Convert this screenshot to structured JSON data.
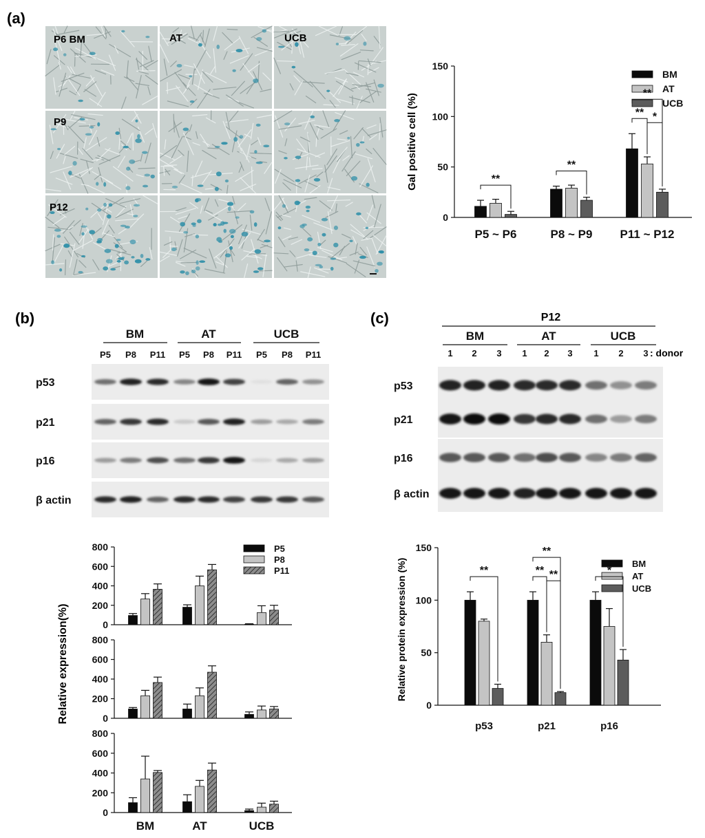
{
  "panels": {
    "a": {
      "label": "(a)"
    },
    "b": {
      "label": "(b)"
    },
    "c": {
      "label": "(c)"
    }
  },
  "micrographs": {
    "columns": [
      "P6 BM",
      "AT",
      "UCB"
    ],
    "rows": [
      "P9",
      "P12"
    ]
  },
  "colors": {
    "BM": "#0b0b0b",
    "AT": "#c4c4c4",
    "UCB": "#5c5c5c",
    "P5": "#0b0b0b",
    "P8": "#c4c4c4",
    "P11": "#8d8d8d",
    "stain": "#2f8fa8",
    "micrograph_bg": "#c9d1cf"
  },
  "western_b": {
    "groups": [
      "BM",
      "AT",
      "UCB"
    ],
    "lanes": [
      "P5",
      "P8",
      "P11",
      "P5",
      "P8",
      "P11",
      "P5",
      "P8",
      "P11"
    ],
    "rows": [
      {
        "label": "p53",
        "intensity": [
          0.55,
          0.9,
          0.85,
          0.45,
          0.95,
          0.75,
          0.05,
          0.6,
          0.4
        ]
      },
      {
        "label": "p21",
        "intensity": [
          0.6,
          0.8,
          0.85,
          0.15,
          0.65,
          0.9,
          0.35,
          0.3,
          0.5
        ]
      },
      {
        "label": "p16",
        "intensity": [
          0.35,
          0.5,
          0.7,
          0.55,
          0.8,
          0.95,
          0.1,
          0.3,
          0.35
        ]
      },
      {
        "label": "β actin",
        "intensity": [
          0.85,
          0.9,
          0.6,
          0.85,
          0.85,
          0.75,
          0.8,
          0.8,
          0.65
        ]
      }
    ]
  },
  "western_c": {
    "title": "P12",
    "groups": [
      "BM",
      "AT",
      "UCB"
    ],
    "donors": [
      "1",
      "2",
      "3",
      "1",
      "2",
      "3",
      "1",
      "2",
      "3"
    ],
    "donor_label": ": donor",
    "rows": [
      {
        "label": "p53",
        "intensity": [
          0.9,
          0.9,
          0.9,
          0.85,
          0.85,
          0.85,
          0.55,
          0.4,
          0.5
        ]
      },
      {
        "label": "p21",
        "intensity": [
          0.95,
          1.0,
          1.0,
          0.8,
          0.85,
          0.85,
          0.55,
          0.35,
          0.5
        ]
      },
      {
        "label": "p16",
        "intensity": [
          0.65,
          0.65,
          0.65,
          0.55,
          0.7,
          0.65,
          0.45,
          0.5,
          0.6
        ]
      },
      {
        "label": "β actin",
        "intensity": [
          0.95,
          0.95,
          0.95,
          0.9,
          0.95,
          0.95,
          0.95,
          0.95,
          0.95
        ]
      }
    ]
  },
  "chart_data": [
    {
      "id": "a",
      "type": "bar",
      "ylabel": "Gal positive cell (%)",
      "categories": [
        "P5 ~ P6",
        "P8 ~ P9",
        "P11 ~ P12"
      ],
      "ylim": [
        0,
        150
      ],
      "yticks": [
        0,
        50,
        100,
        150
      ],
      "legend_position": "top-right",
      "series": [
        {
          "name": "BM",
          "values": [
            11,
            28,
            68
          ],
          "errors": [
            6,
            3,
            15
          ]
        },
        {
          "name": "AT",
          "values": [
            14,
            29,
            53
          ],
          "errors": [
            4,
            3,
            7
          ]
        },
        {
          "name": "UCB",
          "values": [
            3,
            17,
            25
          ],
          "errors": [
            3,
            3,
            3
          ]
        }
      ],
      "annotations": [
        {
          "text": "**",
          "category": 0,
          "from": 0,
          "to": 2,
          "level": 0
        },
        {
          "text": "**",
          "category": 1,
          "from": 0,
          "to": 2,
          "level": 0
        },
        {
          "text": "**",
          "category": 2,
          "from": 0,
          "to": 2,
          "level": 1
        },
        {
          "text": "**",
          "category": 2,
          "from": 0,
          "to": 1,
          "level": 0
        },
        {
          "text": "*",
          "category": 2,
          "from": 1,
          "to": 2,
          "level": 0
        }
      ]
    },
    {
      "id": "b",
      "type": "bar",
      "ylabel": "Relative expression(%)",
      "categories": [
        "BM",
        "AT",
        "UCB"
      ],
      "legend_position": "top-right",
      "series_names": [
        "P5",
        "P8",
        "P11"
      ],
      "subplots": [
        {
          "ylim": [
            0,
            800
          ],
          "yticks": [
            0,
            200,
            400,
            600,
            800
          ],
          "series": [
            {
              "name": "P5",
              "values": [
                95,
                180,
                5
              ],
              "errors": [
                20,
                25,
                5
              ]
            },
            {
              "name": "P8",
              "values": [
                265,
                400,
                125
              ],
              "errors": [
                55,
                100,
                70
              ]
            },
            {
              "name": "P11",
              "values": [
                365,
                565,
                150
              ],
              "errors": [
                55,
                55,
                50
              ]
            }
          ]
        },
        {
          "ylim": [
            0,
            800
          ],
          "yticks": [
            0,
            200,
            400,
            600,
            800
          ],
          "series": [
            {
              "name": "P5",
              "values": [
                95,
                95,
                40
              ],
              "errors": [
                15,
                50,
                25
              ]
            },
            {
              "name": "P8",
              "values": [
                230,
                230,
                85
              ],
              "errors": [
                55,
                80,
                40
              ]
            },
            {
              "name": "P11",
              "values": [
                365,
                470,
                95
              ],
              "errors": [
                55,
                65,
                25
              ]
            }
          ]
        },
        {
          "ylim": [
            0,
            800
          ],
          "yticks": [
            0,
            200,
            400,
            600,
            800
          ],
          "series": [
            {
              "name": "P5",
              "values": [
                100,
                110,
                20
              ],
              "errors": [
                50,
                70,
                15
              ]
            },
            {
              "name": "P8",
              "values": [
                340,
                265,
                55
              ],
              "errors": [
                230,
                60,
                40
              ]
            },
            {
              "name": "P11",
              "values": [
                405,
                430,
                85
              ],
              "errors": [
                20,
                70,
                30
              ]
            }
          ]
        }
      ]
    },
    {
      "id": "c",
      "type": "bar",
      "ylabel": "Relative protein expression (%)",
      "categories": [
        "p53",
        "p21",
        "p16"
      ],
      "ylim": [
        0,
        150
      ],
      "yticks": [
        0,
        50,
        100,
        150
      ],
      "legend_position": "top-right",
      "series": [
        {
          "name": "BM",
          "values": [
            100,
            100,
            100
          ],
          "errors": [
            8,
            8,
            8
          ]
        },
        {
          "name": "AT",
          "values": [
            80,
            60,
            75
          ],
          "errors": [
            2,
            7,
            17
          ]
        },
        {
          "name": "UCB",
          "values": [
            16,
            12,
            43
          ],
          "errors": [
            4,
            1,
            10
          ]
        }
      ],
      "annotations": [
        {
          "text": "**",
          "category": 0,
          "from": 0,
          "to": 2,
          "level": 0
        },
        {
          "text": "**",
          "category": 1,
          "from": 0,
          "to": 2,
          "level": 1
        },
        {
          "text": "**",
          "category": 1,
          "from": 0,
          "to": 1,
          "level": 0
        },
        {
          "text": "**",
          "category": 1,
          "from": 1,
          "to": 2,
          "level": 0
        },
        {
          "text": "*",
          "category": 2,
          "from": 0,
          "to": 2,
          "level": 0
        }
      ]
    }
  ]
}
